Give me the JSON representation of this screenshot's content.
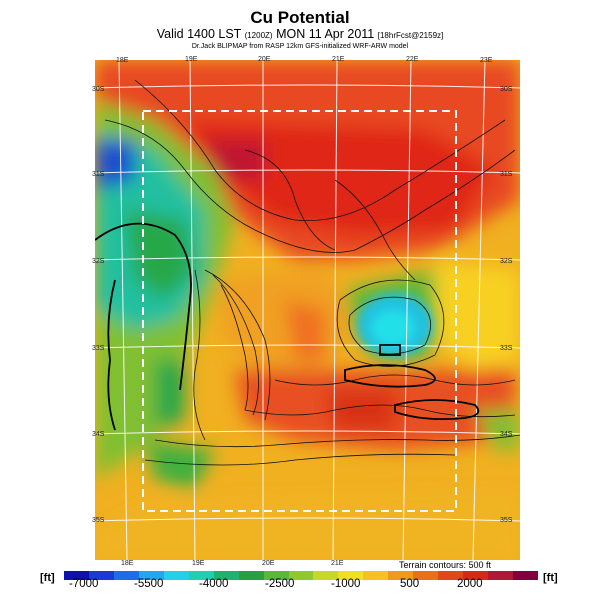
{
  "header": {
    "title": "Cu Potential",
    "subtitle_main": "Valid 1400 LST",
    "subtitle_small1": "(1200Z)",
    "subtitle_date": "MON 11 Apr 2011",
    "subtitle_small2": "[18hrFcst@2159z]",
    "credit": "Dr.Jack BLIPMAP from RASP 12km GFS-initialized WRF-ARW model"
  },
  "map": {
    "lon_labels_top": [
      "18E",
      "19E",
      "20E",
      "21E",
      "22E",
      "23E"
    ],
    "lon_labels_bottom": [
      "18E",
      "19E",
      "20E",
      "21E"
    ],
    "lat_labels_left": [
      "30S",
      "31S",
      "32S",
      "33S",
      "34S",
      "35S"
    ],
    "lat_labels_right": [
      "30S",
      "31S",
      "32S",
      "33S",
      "34S",
      "35S"
    ],
    "terrain_note": "Terrain contours: 500 ft"
  },
  "colorbar": {
    "unit_left": "[ft]",
    "unit_right": "[ft]",
    "ticks": [
      "-7000",
      "-5500",
      "-4000",
      "-2500",
      "-1000",
      "500",
      "2000"
    ],
    "colors": [
      "#1010b0",
      "#1a3ad8",
      "#1c6ee8",
      "#22a6f0",
      "#22d0e8",
      "#1ed0b0",
      "#20b070",
      "#28a040",
      "#5cb838",
      "#90c830",
      "#c8d828",
      "#f0e020",
      "#f8c020",
      "#f09a1c",
      "#e87018",
      "#e04818",
      "#d82818",
      "#b01838",
      "#800040"
    ]
  }
}
